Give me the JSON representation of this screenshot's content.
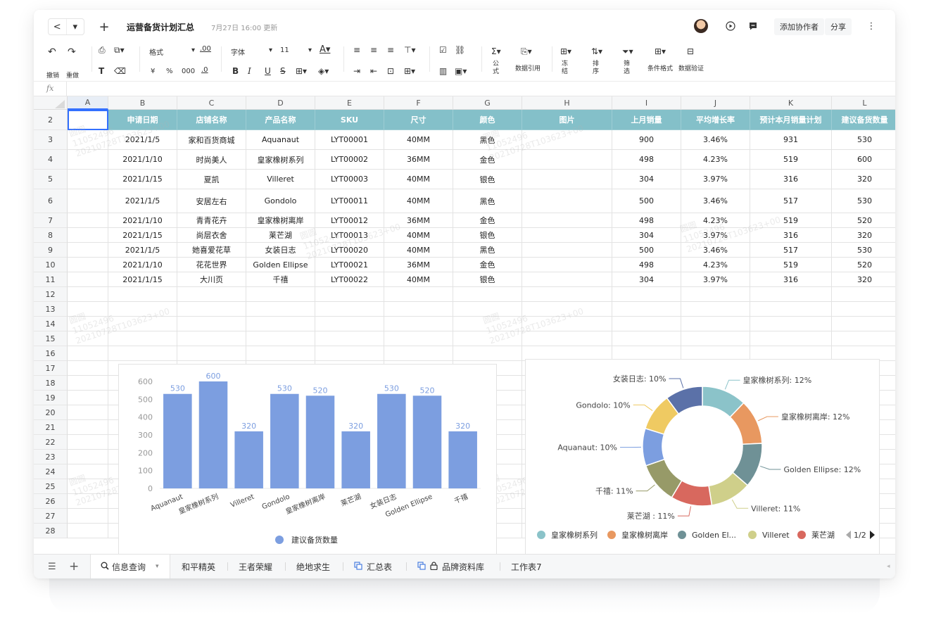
{
  "window": {
    "title": "运营备货计划汇总",
    "updated": "7月27日 16:00 更新",
    "add_collaborator": "添加协作者",
    "share": "分享",
    "more": "⋮",
    "plus": "+",
    "back": "<",
    "dropdown": "▾"
  },
  "toolbar": {
    "undo": "撤销",
    "redo": "重做",
    "format": "格式",
    "decimal": ".00",
    "decimal2": ".0",
    "currency": "¥",
    "percent": "%",
    "thousands": "000",
    "font": "字体",
    "size": "11",
    "bold": "B",
    "italic": "I",
    "underline": "U",
    "strike": "S",
    "sum_top": "Σ",
    "sum_label": "公式",
    "ref_label": "数据引用",
    "freeze_label": "冻结",
    "sort_label": "排序",
    "filter_label": "筛选",
    "cond_label": "条件格式",
    "valid_label": "数据验证"
  },
  "formula": {
    "fx": "fx"
  },
  "columns": [
    "A",
    "B",
    "C",
    "D",
    "E",
    "F",
    "G",
    "H",
    "I",
    "J",
    "K",
    "L"
  ],
  "rows": [
    "2",
    "3",
    "4",
    "5",
    "6",
    "7",
    "8",
    "9",
    "10",
    "11",
    "12",
    "13",
    "14",
    "15",
    "16",
    "17",
    "18",
    "19",
    "20",
    "21",
    "22",
    "23",
    "24",
    "25",
    "26",
    "27",
    "28"
  ],
  "header": [
    "申请日期",
    "店铺名称",
    "产品名称",
    "SKU",
    "尺寸",
    "颜色",
    "图片",
    "上月销量",
    "平均增长率",
    "预计本月销量计划",
    "建议备货数量"
  ],
  "table": [
    [
      "2021/1/5",
      "家和百货商城",
      "Aquanaut",
      "LYT00001",
      "40MM",
      "黑色",
      "",
      "900",
      "3.46%",
      "931",
      "530"
    ],
    [
      "2021/1/10",
      "时尚美人",
      "皇家橡树系列",
      "LYT00002",
      "36MM",
      "金色",
      "",
      "498",
      "4.23%",
      "519",
      "600"
    ],
    [
      "2021/1/15",
      "夏凯",
      "Villeret",
      "LYT00003",
      "40MM",
      "银色",
      "",
      "304",
      "3.97%",
      "316",
      "320"
    ],
    [
      "2021/1/5",
      "安居左右",
      "Gondolo",
      "LYT00011",
      "40MM",
      "黑色",
      "",
      "500",
      "3.46%",
      "517",
      "530"
    ],
    [
      "2021/1/10",
      "青青花卉",
      "皇家橡树离岸",
      "LYT00012",
      "36MM",
      "金色",
      "",
      "498",
      "4.23%",
      "519",
      "520"
    ],
    [
      "2021/1/15",
      "尚层衣舍",
      "莱芒湖",
      "LYT00013",
      "40MM",
      "银色",
      "",
      "304",
      "3.97%",
      "316",
      "320"
    ],
    [
      "2021/1/5",
      "她喜爱花草",
      "女装日志",
      "LYT00020",
      "40MM",
      "黑色",
      "",
      "500",
      "3.46%",
      "517",
      "530"
    ],
    [
      "2021/1/10",
      "花花世界",
      "Golden Ellipse",
      "LYT00021",
      "36MM",
      "金色",
      "",
      "498",
      "4.23%",
      "519",
      "520"
    ],
    [
      "2021/1/15",
      "大川页",
      "千禧",
      "LYT00022",
      "40MM",
      "银色",
      "",
      "304",
      "3.97%",
      "316",
      "320"
    ]
  ],
  "watermark": [
    "圆圆",
    "11052496",
    "20210728T103623+00"
  ],
  "colors": {
    "header": "#84c0c9",
    "bar": "#7c9ee0"
  },
  "chart_data": [
    {
      "type": "bar",
      "categories": [
        "Aquanaut",
        "皇家橡树系列",
        "Villeret",
        "Gondolo",
        "皇家橡树离岸",
        "莱芒湖",
        "女装日志",
        "Golden Ellipse",
        "千禧"
      ],
      "series": [
        {
          "name": "建议备货数量",
          "values": [
            530,
            600,
            320,
            530,
            520,
            320,
            530,
            520,
            320
          ]
        }
      ],
      "ylim": [
        0,
        600
      ],
      "yticks": [
        0,
        100,
        200,
        300,
        400,
        500,
        600
      ],
      "legend": "bottom",
      "grid": false
    },
    {
      "type": "pie",
      "variant": "donut",
      "slices": [
        {
          "label": "皇家橡树系列: 12%",
          "value": 12,
          "color": "#8bc3c9"
        },
        {
          "label": "皇家橡树离岸: 12%",
          "value": 12,
          "color": "#e89860"
        },
        {
          "label": "Golden Ellipse: 12%",
          "value": 12,
          "color": "#6f9196"
        },
        {
          "label": "Villeret: 11%",
          "value": 11,
          "color": "#cfcf8a"
        },
        {
          "label": "莱芒湖 : 11%",
          "value": 11,
          "color": "#d8685e"
        },
        {
          "label": "千禧: 11%",
          "value": 11,
          "color": "#979a68"
        },
        {
          "label": "Aquanaut: 10%",
          "value": 10,
          "color": "#7c9ee0"
        },
        {
          "label": "Gondolo: 10%",
          "value": 10,
          "color": "#efca62"
        },
        {
          "label": "女装日志: 10%",
          "value": 10,
          "color": "#5b71a8"
        }
      ],
      "legend_items": [
        "皇家橡树系列",
        "皇家橡树离岸",
        "Golden El...",
        "Villeret",
        "莱芒湖"
      ],
      "legend_page": "1/2",
      "legend": "bottom"
    }
  ],
  "tabs": {
    "menu": "☰",
    "add": "+",
    "items": [
      "信息查询",
      "和平精英",
      "王者荣耀",
      "绝地求生",
      "汇总表",
      "品牌资料库",
      "工作表7"
    ]
  }
}
